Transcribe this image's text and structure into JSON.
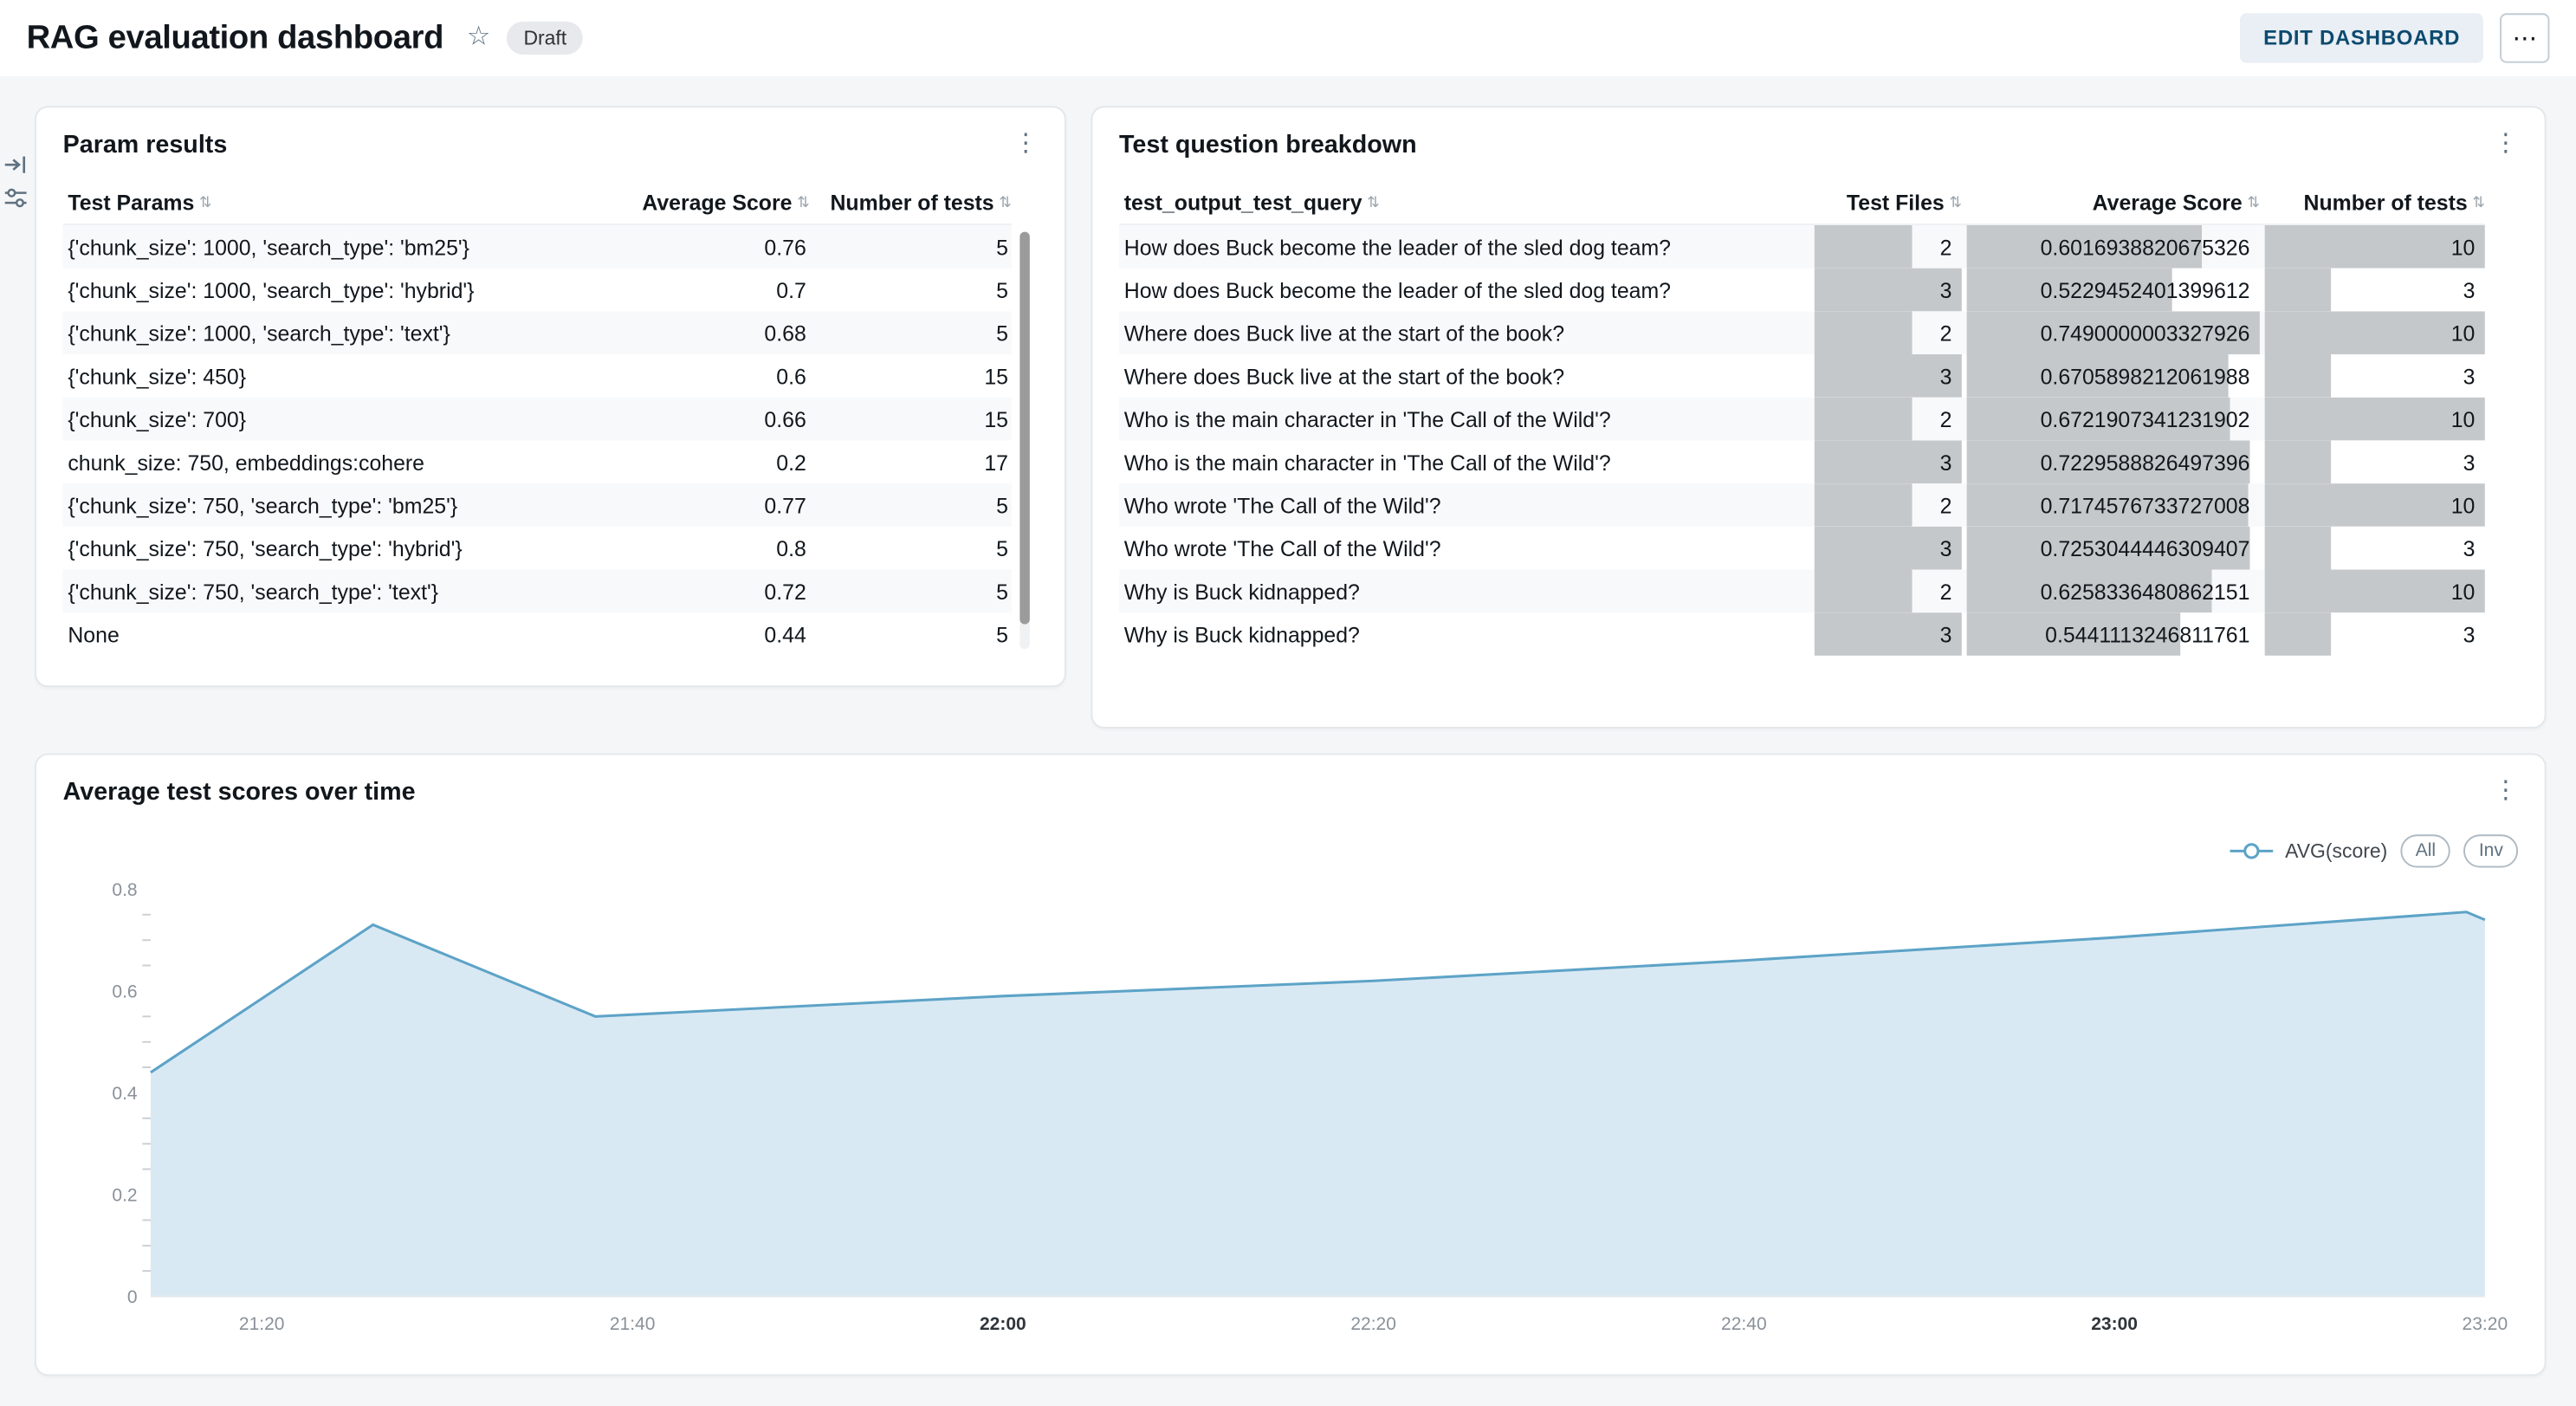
{
  "header": {
    "title": "RAG evaluation dashboard",
    "status_badge": "Draft",
    "edit_button": "EDIT DASHBOARD",
    "more_button": "⋯"
  },
  "icons": {
    "sort": "⇅",
    "kebab": "⋮",
    "star": "☆"
  },
  "colors": {
    "accent_line_blue": "#5da3c7",
    "area_fill_blue": "#d9e9f3",
    "data_bar_gray": "#c4c8cb",
    "edit_button_bg": "#e9eff4",
    "edit_button_text": "#0d4a6f"
  },
  "param_results": {
    "title": "Param results",
    "columns": [
      "Test Params",
      "Average Score",
      "Number of tests"
    ],
    "rows": [
      {
        "params": "{'chunk_size': 1000, 'search_type': 'bm25'}",
        "avg_score": "0.76",
        "num_tests": "5"
      },
      {
        "params": "{'chunk_size': 1000, 'search_type': 'hybrid'}",
        "avg_score": "0.7",
        "num_tests": "5"
      },
      {
        "params": "{'chunk_size': 1000, 'search_type': 'text'}",
        "avg_score": "0.68",
        "num_tests": "5"
      },
      {
        "params": "{'chunk_size': 450}",
        "avg_score": "0.6",
        "num_tests": "15"
      },
      {
        "params": "{'chunk_size': 700}",
        "avg_score": "0.66",
        "num_tests": "15"
      },
      {
        "params": "chunk_size: 750, embeddings:cohere",
        "avg_score": "0.2",
        "num_tests": "17"
      },
      {
        "params": "{'chunk_size': 750, 'search_type': 'bm25'}",
        "avg_score": "0.77",
        "num_tests": "5"
      },
      {
        "params": "{'chunk_size': 750, 'search_type': 'hybrid'}",
        "avg_score": "0.8",
        "num_tests": "5"
      },
      {
        "params": "{'chunk_size': 750, 'search_type': 'text'}",
        "avg_score": "0.72",
        "num_tests": "5"
      },
      {
        "params": "None",
        "avg_score": "0.44",
        "num_tests": "5"
      }
    ]
  },
  "test_question_breakdown": {
    "title": "Test question breakdown",
    "columns": [
      "test_output_test_query",
      "Test Files",
      "Average Score",
      "Number of tests"
    ],
    "rows": [
      {
        "query": "How does Buck become the leader of the sled dog team?",
        "test_files": "2",
        "avg_score": "0.6016938820675326",
        "num_tests": "10"
      },
      {
        "query": "How does Buck become the leader of the sled dog team?",
        "test_files": "3",
        "avg_score": "0.5229452401399612",
        "num_tests": "3"
      },
      {
        "query": "Where does Buck live at the start of the book?",
        "test_files": "2",
        "avg_score": "0.7490000003327926",
        "num_tests": "10"
      },
      {
        "query": "Where does Buck live at the start of the book?",
        "test_files": "3",
        "avg_score": "0.6705898212061988",
        "num_tests": "3"
      },
      {
        "query": "Who is the main character in 'The Call of the Wild'?",
        "test_files": "2",
        "avg_score": "0.6721907341231902",
        "num_tests": "10"
      },
      {
        "query": "Who is the main character in 'The Call of the Wild'?",
        "test_files": "3",
        "avg_score": "0.7229588826497396",
        "num_tests": "3"
      },
      {
        "query": "Who wrote 'The Call of the Wild'?",
        "test_files": "2",
        "avg_score": "0.7174576733727008",
        "num_tests": "10"
      },
      {
        "query": "Who wrote 'The Call of the Wild'?",
        "test_files": "3",
        "avg_score": "0.7253044446309407",
        "num_tests": "3"
      },
      {
        "query": "Why is Buck kidnapped?",
        "test_files": "2",
        "avg_score": "0.6258336480862151",
        "num_tests": "10"
      },
      {
        "query": "Why is Buck kidnapped?",
        "test_files": "3",
        "avg_score": "0.5441113246811761",
        "num_tests": "3"
      }
    ]
  },
  "scores_over_time": {
    "title": "Average test scores over time",
    "legend_series": "AVG(score)",
    "legend_buttons": [
      "All",
      "Inv"
    ]
  },
  "chart_data": {
    "type": "area",
    "title": "Average test scores over time",
    "series": [
      {
        "name": "AVG(score)",
        "points": [
          {
            "t": "21:14",
            "v": 0.44
          },
          {
            "t": "21:26",
            "v": 0.73
          },
          {
            "t": "21:38",
            "v": 0.55
          },
          {
            "t": "22:00",
            "v": 0.59
          },
          {
            "t": "22:20",
            "v": 0.62
          },
          {
            "t": "22:40",
            "v": 0.66
          },
          {
            "t": "23:00",
            "v": 0.705
          },
          {
            "t": "23:19",
            "v": 0.755
          },
          {
            "t": "23:20",
            "v": 0.74
          }
        ]
      }
    ],
    "x_ticks": [
      {
        "label": "21:20",
        "bold": false
      },
      {
        "label": "21:40",
        "bold": false
      },
      {
        "label": "22:00",
        "bold": true
      },
      {
        "label": "22:20",
        "bold": false
      },
      {
        "label": "22:40",
        "bold": false
      },
      {
        "label": "23:00",
        "bold": true
      },
      {
        "label": "23:20",
        "bold": false
      }
    ],
    "y_ticks": [
      0,
      0.2,
      0.4,
      0.6,
      0.8
    ],
    "ylim": [
      0,
      0.8
    ],
    "x_domain_minutes": [
      1274,
      1400
    ],
    "line_color": "#5da3c7",
    "fill_color": "#d9e9f3",
    "legend_position": "top-right",
    "grid": false
  }
}
